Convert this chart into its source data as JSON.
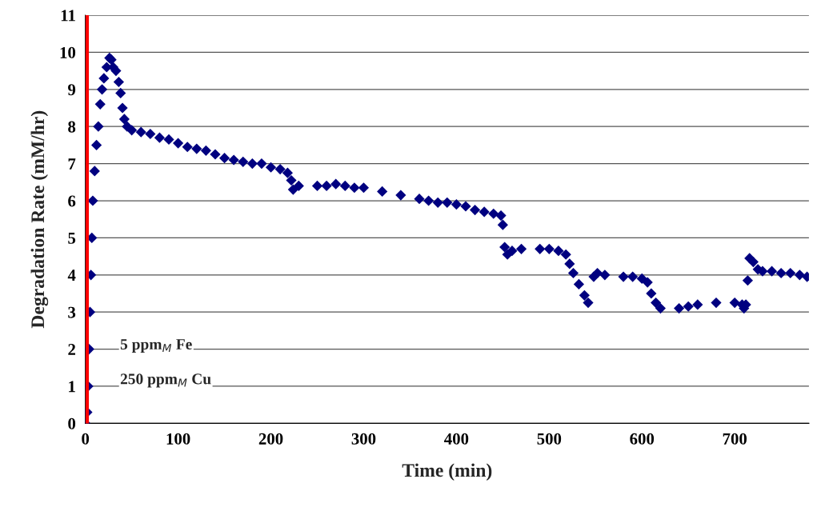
{
  "chart_data": {
    "type": "scatter",
    "xlabel": "Time (min)",
    "ylabel": "Degradation Rate (mM/hr)",
    "xlim": [
      0,
      780
    ],
    "xticks": [
      0,
      100,
      200,
      300,
      400,
      500,
      600,
      700
    ],
    "ylim": [
      0,
      11
    ],
    "yticks": [
      0,
      1,
      2,
      3,
      4,
      5,
      6,
      7,
      8,
      9,
      10,
      11
    ],
    "grid": "y",
    "marker": "diamond",
    "legend": false,
    "ref_lines": [
      {
        "axis": "x",
        "value": 2,
        "color": "#ff0000"
      }
    ],
    "annotations": [
      "5 ppm$_{M}$ Fe",
      "250 ppm$_{M}$ Cu"
    ],
    "series": [
      {
        "color": "#000080",
        "x": [
          0,
          2,
          3,
          4,
          5,
          6,
          7,
          8,
          10,
          12,
          14,
          16,
          18,
          20,
          23,
          26,
          28,
          30,
          33,
          36,
          38,
          40,
          42,
          45,
          50,
          60,
          70,
          80,
          90,
          100,
          110,
          120,
          130,
          140,
          150,
          160,
          170,
          180,
          190,
          200,
          210,
          218,
          222,
          224,
          230,
          250,
          260,
          270,
          280,
          290,
          300,
          320,
          340,
          360,
          370,
          380,
          390,
          400,
          410,
          420,
          430,
          440,
          448,
          450,
          452,
          455,
          460,
          470,
          490,
          500,
          510,
          518,
          522,
          526,
          532,
          538,
          542,
          548,
          552,
          560,
          580,
          590,
          600,
          606,
          610,
          615,
          620,
          640,
          650,
          660,
          680,
          700,
          708,
          710,
          712,
          714,
          716,
          720,
          725,
          730,
          740,
          750,
          760,
          770,
          778
        ],
        "values": [
          0,
          0.3,
          1,
          2,
          3,
          4,
          5,
          6,
          6.8,
          7.5,
          8,
          8.6,
          9,
          9.3,
          9.6,
          9.85,
          9.8,
          9.6,
          9.5,
          9.2,
          8.9,
          8.5,
          8.2,
          8.0,
          7.9,
          7.85,
          7.8,
          7.7,
          7.65,
          7.55,
          7.45,
          7.4,
          7.35,
          7.25,
          7.15,
          7.1,
          7.05,
          7.0,
          7.0,
          6.9,
          6.85,
          6.75,
          6.55,
          6.3,
          6.4,
          6.4,
          6.4,
          6.45,
          6.4,
          6.35,
          6.35,
          6.25,
          6.15,
          6.05,
          6.0,
          5.95,
          5.95,
          5.9,
          5.85,
          5.75,
          5.7,
          5.65,
          5.6,
          5.35,
          4.75,
          4.55,
          4.65,
          4.7,
          4.7,
          4.7,
          4.65,
          4.55,
          4.3,
          4.05,
          3.75,
          3.45,
          3.25,
          3.95,
          4.05,
          4.0,
          3.95,
          3.95,
          3.9,
          3.8,
          3.5,
          3.25,
          3.1,
          3.1,
          3.15,
          3.2,
          3.25,
          3.25,
          3.2,
          3.1,
          3.2,
          3.85,
          4.45,
          4.35,
          4.15,
          4.1,
          4.1,
          4.05,
          4.05,
          4.0,
          3.95
        ]
      }
    ]
  }
}
